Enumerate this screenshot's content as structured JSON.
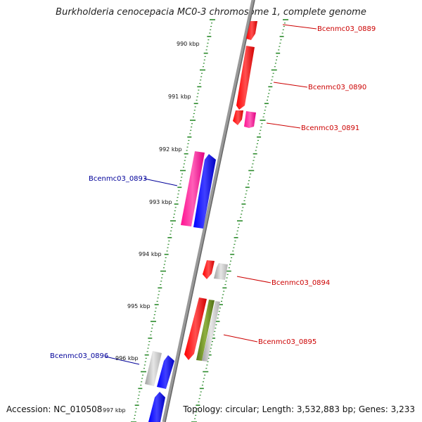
{
  "title": "Burkholderia cenocepacia MC0-3 chromosome 1, complete genome",
  "accession_text": "Accession: NC_010508",
  "topology_text": "Topology: circular; Length: 3,532,883 bp; Genes: 3,233",
  "ruler_ticks": [
    {
      "label": "990 kbp",
      "pos_kbp": 990
    },
    {
      "label": "991 kbp",
      "pos_kbp": 991
    },
    {
      "label": "992 kbp",
      "pos_kbp": 992
    },
    {
      "label": "993 kbp",
      "pos_kbp": 993
    },
    {
      "label": "994 kbp",
      "pos_kbp": 994
    },
    {
      "label": "995 kbp",
      "pos_kbp": 995
    },
    {
      "label": "996 kbp",
      "pos_kbp": 996
    },
    {
      "label": "997 kbp",
      "pos_kbp": 997
    }
  ],
  "gene_labels": [
    {
      "name": "Bcenmc03_0889",
      "color": "#cc0000",
      "side": "right"
    },
    {
      "name": "Bcenmc03_0890",
      "color": "#cc0000",
      "side": "right"
    },
    {
      "name": "Bcenmc03_0891",
      "color": "#cc0000",
      "side": "right"
    },
    {
      "name": "Bcenmc03_0893",
      "color": "#000099",
      "side": "left"
    },
    {
      "name": "Bcenmc03_0894",
      "color": "#cc0000",
      "side": "right"
    },
    {
      "name": "Bcenmc03_0895",
      "color": "#cc0000",
      "side": "right"
    },
    {
      "name": "Bcenmc03_0896",
      "color": "#000099",
      "side": "left"
    }
  ],
  "colors": {
    "backbone": "#888888",
    "ruler": "#2a8a2a",
    "forward_cds": "#ff0000",
    "reverse_cds": "#0000ff",
    "pink_feature": "#ff2a9a",
    "gray_feature": "#bbbbbb",
    "green_feature": "#6b8e23"
  }
}
